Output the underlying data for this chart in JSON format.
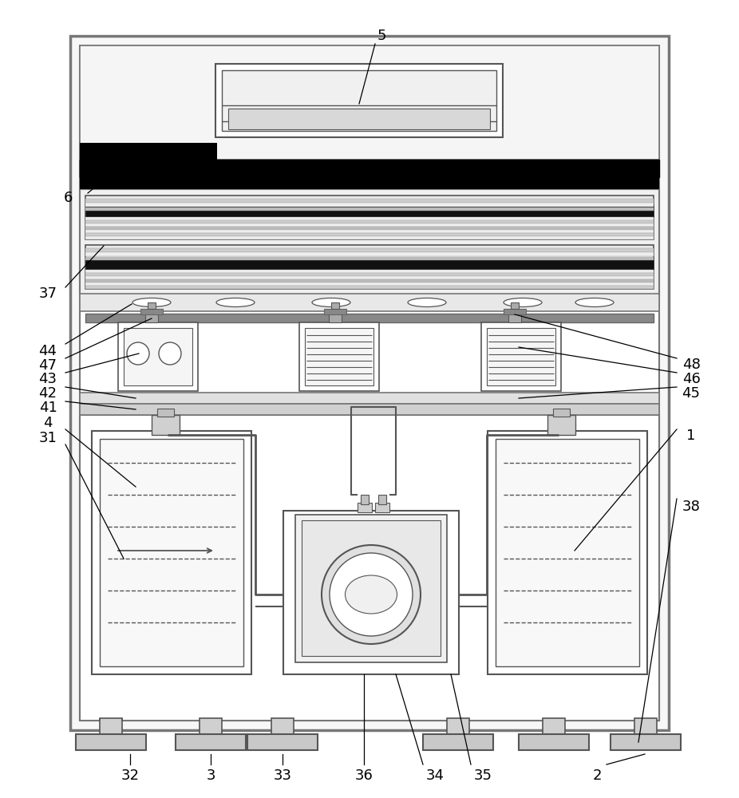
{
  "bg_color": "#ffffff",
  "lc": "#555555",
  "black": "#000000",
  "dark": "#222222",
  "mid_gray": "#999999",
  "light_gray": "#cccccc",
  "fill_light": "#f0f0f0",
  "fill_white": "#ffffff",
  "rail_dark": "#111111",
  "rail_light": "#dddddd",
  "cable_black": "#000000"
}
